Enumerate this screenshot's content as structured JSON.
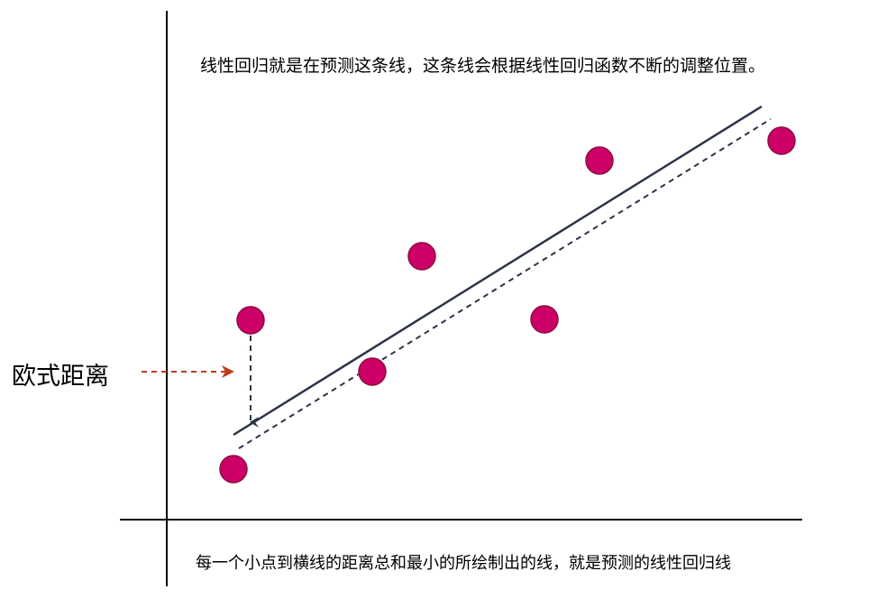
{
  "captions": {
    "top": "线性回归就是在预测这条线，这条线会根据线性回归函数不断的调整位置。",
    "bottom": "每一个小点到横线的距离总和最小的所绘制出的线，就是预测的线性回归线",
    "side_label": "欧式距离"
  },
  "colors": {
    "axis": "#000000",
    "regression_line": "#2b3347",
    "point_fill": "#cc0066",
    "point_stroke": "#8a0f3f",
    "residual_arrow": "#2b3347",
    "label_arrow": "#c03a1e"
  },
  "points_count": 7
}
